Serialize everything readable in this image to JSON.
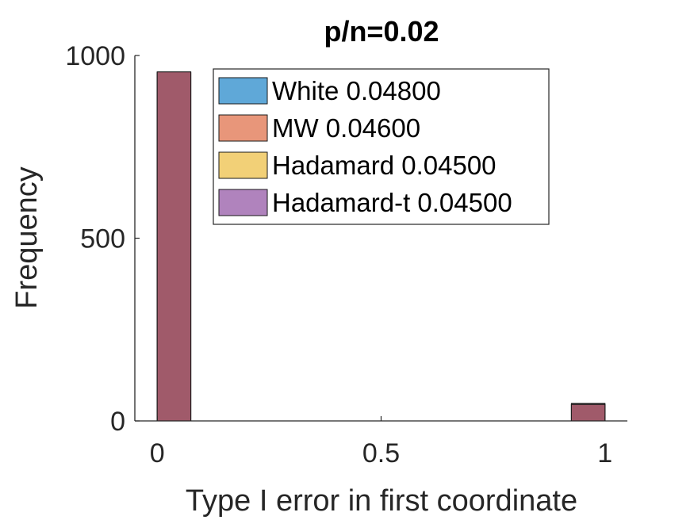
{
  "chart_data": {
    "type": "bar",
    "title": "p/n=0.02",
    "xlabel": "Type I error in first coordinate",
    "ylabel": "Frequency",
    "xlim": [
      -0.05,
      1.05
    ],
    "ylim": [
      0,
      1000
    ],
    "xticks": [
      "0",
      "0.5",
      "1"
    ],
    "xtick_values": [
      0,
      0.5,
      1
    ],
    "yticks": [
      "0",
      "500",
      "1000"
    ],
    "ytick_values": [
      0,
      500,
      1000
    ],
    "bin_width": 0.075,
    "bin_centers": [
      0,
      1
    ],
    "series": [
      {
        "name": "White 0.04800",
        "color": "#5fa8d8",
        "values": [
          952,
          48
        ]
      },
      {
        "name": "MW 0.04600",
        "color": "#e8967a",
        "values": [
          954,
          46
        ]
      },
      {
        "name": "Hadamard 0.04500",
        "color": "#f2d077",
        "values": [
          955,
          45
        ]
      },
      {
        "name": "Hadamard-t 0.04500",
        "color": "#b083bd",
        "values": [
          955,
          45
        ]
      }
    ],
    "visible_bar_color": "#a05a6a",
    "legend_position": "top-right",
    "grid": false
  }
}
